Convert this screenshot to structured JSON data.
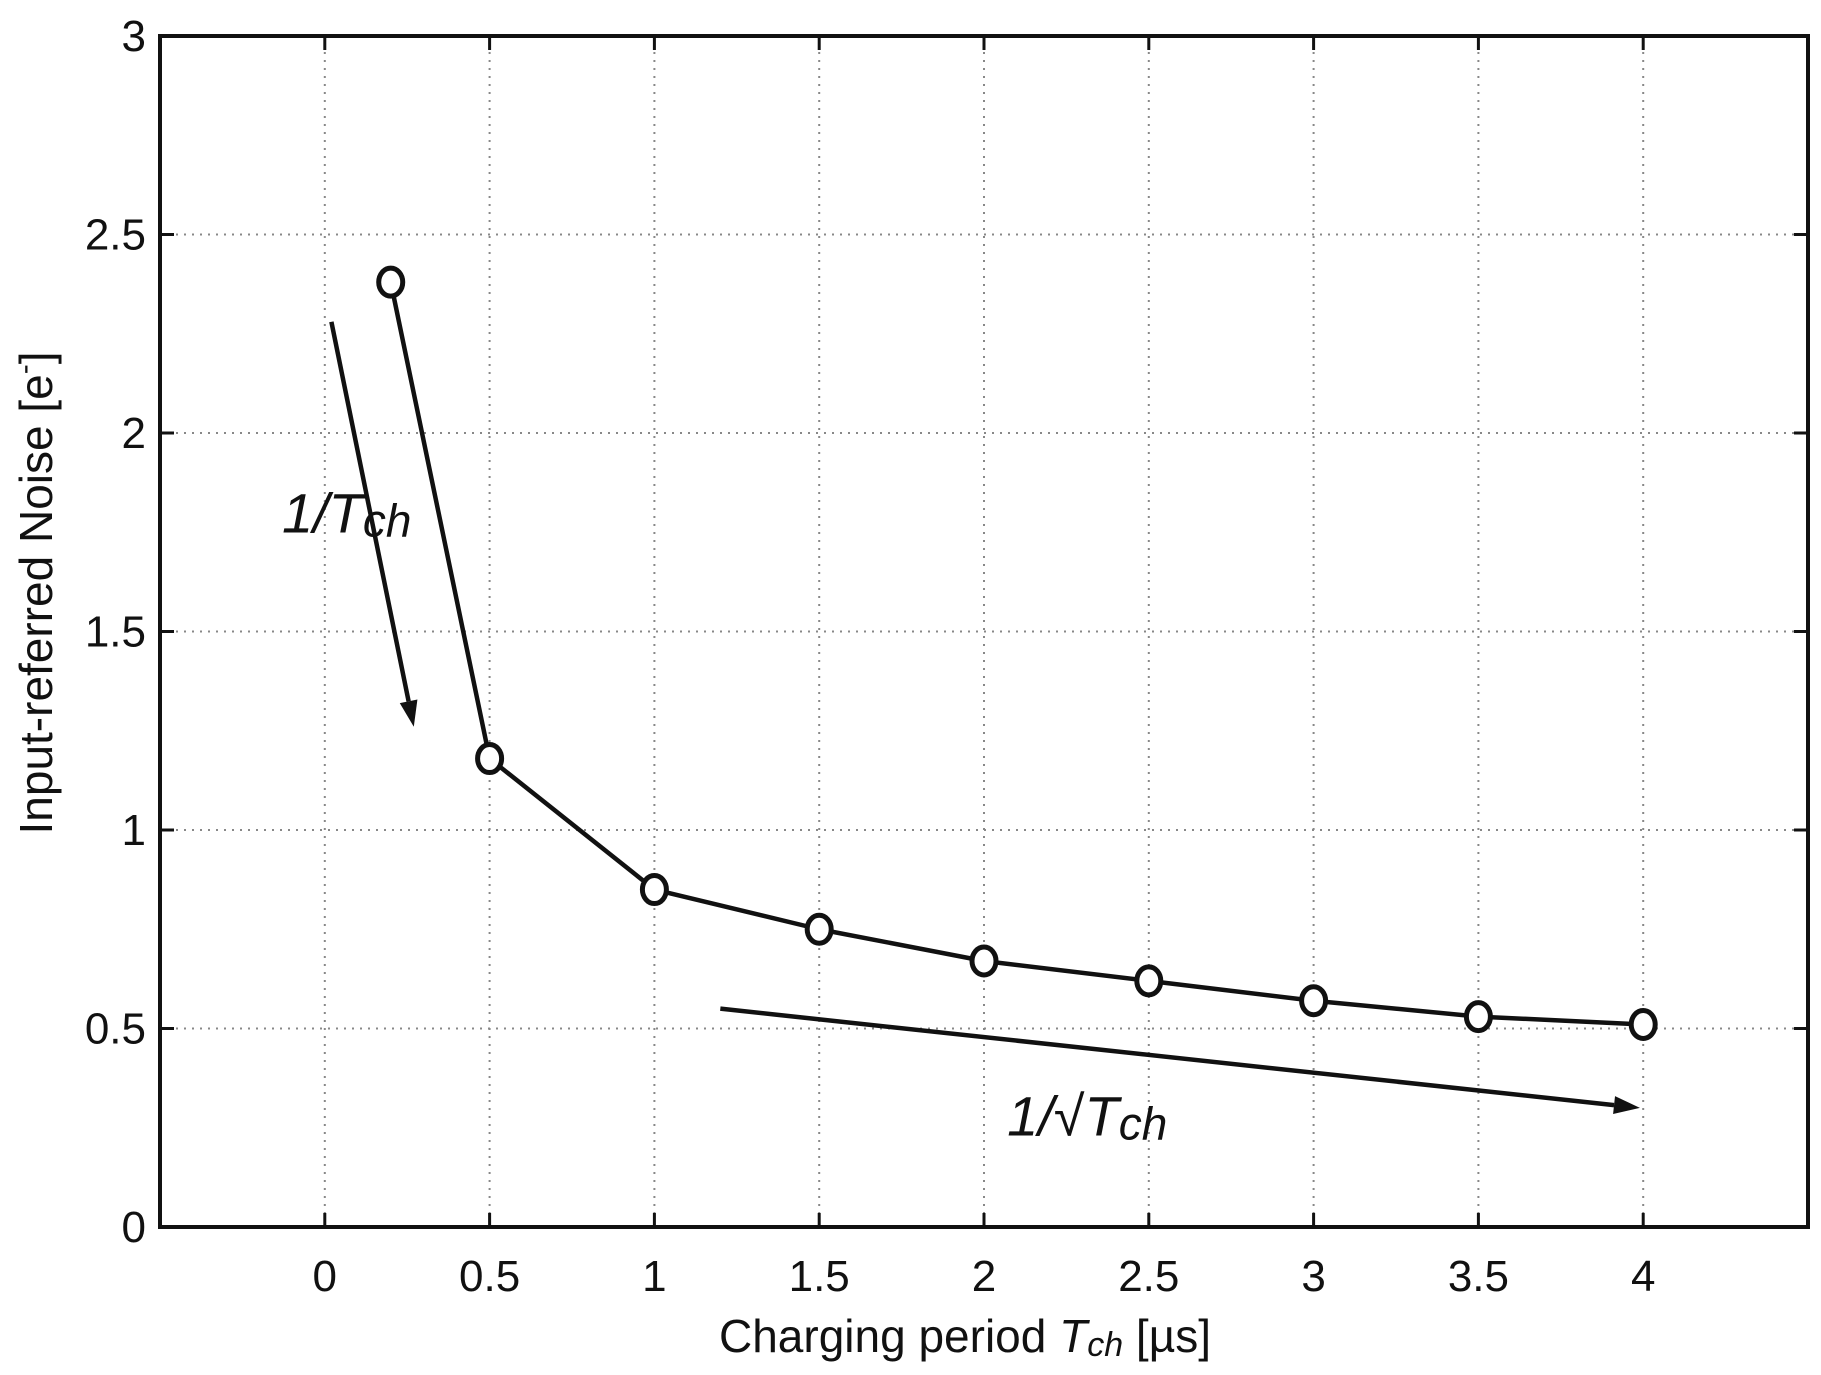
{
  "chart_data": {
    "type": "line",
    "title": "",
    "xlabel": {
      "prefix": "Charging period ",
      "variable": "T",
      "subscript": "ch",
      "suffix": " [µs]"
    },
    "ylabel": {
      "text": "Input-referred Noise [e",
      "superscript": "-",
      "close": "]"
    },
    "xlim": [
      -0.5,
      4.5
    ],
    "ylim": [
      0,
      3
    ],
    "x_ticks": [
      0,
      0.5,
      1,
      1.5,
      2,
      2.5,
      3,
      3.5,
      4
    ],
    "x_tick_labels": [
      "0",
      "0.5",
      "1",
      "1.5",
      "2",
      "2.5",
      "3",
      "3.5",
      "4"
    ],
    "y_ticks": [
      0,
      0.5,
      1,
      1.5,
      2,
      2.5,
      3
    ],
    "y_tick_labels": [
      "0",
      "0.5",
      "1",
      "1.5",
      "2",
      "2.5",
      "3"
    ],
    "grid": true,
    "series": [
      {
        "name": "Input-referred noise",
        "marker": "circle",
        "x": [
          0.2,
          0.5,
          1.0,
          1.5,
          2.0,
          2.5,
          3.0,
          3.5,
          4.0
        ],
        "y": [
          2.38,
          1.18,
          0.85,
          0.75,
          0.67,
          0.62,
          0.57,
          0.53,
          0.51
        ]
      }
    ],
    "annotations": [
      {
        "name": "inverse-tch",
        "prefix": "1/",
        "variable": "T",
        "subscript": "ch",
        "text_at": [
          -0.13,
          1.75
        ],
        "arrow_from": [
          0.02,
          2.28
        ],
        "arrow_to": [
          0.27,
          1.26
        ]
      },
      {
        "name": "inverse-sqrt-tch",
        "prefix": "1/√",
        "variable": "T",
        "subscript": "ch",
        "text_at": [
          2.07,
          0.23
        ],
        "arrow_from": [
          1.2,
          0.55
        ],
        "arrow_to": [
          3.99,
          0.3
        ]
      }
    ],
    "colors": {
      "line": "#111111",
      "marker_fill": "#ffffff",
      "grid": "#888888",
      "background": "#ffffff"
    }
  }
}
